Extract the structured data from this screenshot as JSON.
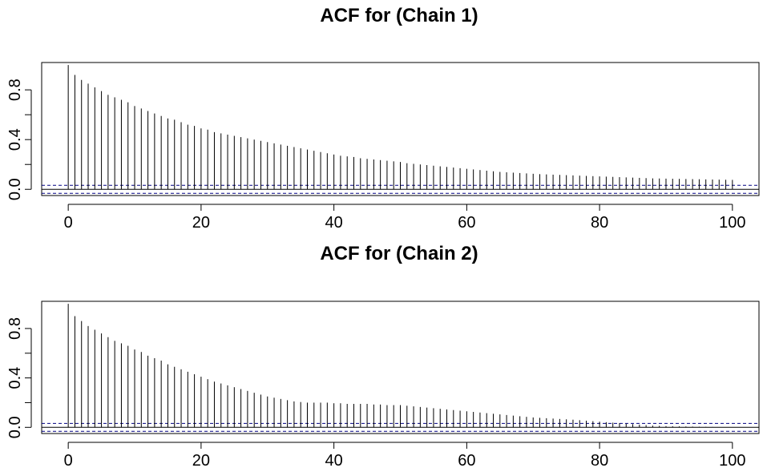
{
  "chart_data": [
    {
      "type": "bar",
      "title": "ACF for (Chain 1)",
      "xlabel": "",
      "ylabel": "",
      "xlim": [
        -4,
        104
      ],
      "ylim": [
        -0.05,
        1.02
      ],
      "x_ticks": [
        0,
        20,
        40,
        60,
        80,
        100
      ],
      "y_ticks": [
        0.0,
        0.2,
        0.4,
        0.6,
        0.8
      ],
      "y_tick_labels": [
        "0.0",
        "",
        "0.4",
        "",
        "0.8"
      ],
      "confidence_band": [
        -0.032,
        0.032
      ],
      "lags": [
        0,
        1,
        2,
        3,
        4,
        5,
        6,
        7,
        8,
        9,
        10,
        11,
        12,
        13,
        14,
        15,
        16,
        17,
        18,
        19,
        20,
        21,
        22,
        23,
        24,
        25,
        26,
        27,
        28,
        29,
        30,
        31,
        32,
        33,
        34,
        35,
        36,
        37,
        38,
        39,
        40,
        41,
        42,
        43,
        44,
        45,
        46,
        47,
        48,
        49,
        50,
        51,
        52,
        53,
        54,
        55,
        56,
        57,
        58,
        59,
        60,
        61,
        62,
        63,
        64,
        65,
        66,
        67,
        68,
        69,
        70,
        71,
        72,
        73,
        74,
        75,
        76,
        77,
        78,
        79,
        80,
        81,
        82,
        83,
        84,
        85,
        86,
        87,
        88,
        89,
        90,
        91,
        92,
        93,
        94,
        95,
        96,
        97,
        98,
        99,
        100
      ],
      "values": [
        1.0,
        0.92,
        0.88,
        0.85,
        0.82,
        0.79,
        0.76,
        0.74,
        0.72,
        0.7,
        0.67,
        0.65,
        0.63,
        0.61,
        0.59,
        0.57,
        0.56,
        0.54,
        0.52,
        0.51,
        0.49,
        0.48,
        0.46,
        0.45,
        0.44,
        0.43,
        0.42,
        0.41,
        0.4,
        0.39,
        0.38,
        0.37,
        0.36,
        0.35,
        0.34,
        0.33,
        0.32,
        0.31,
        0.3,
        0.29,
        0.28,
        0.27,
        0.265,
        0.26,
        0.25,
        0.245,
        0.24,
        0.235,
        0.23,
        0.225,
        0.22,
        0.21,
        0.205,
        0.2,
        0.195,
        0.19,
        0.185,
        0.18,
        0.175,
        0.17,
        0.165,
        0.16,
        0.155,
        0.15,
        0.145,
        0.14,
        0.137,
        0.134,
        0.131,
        0.128,
        0.125,
        0.122,
        0.12,
        0.118,
        0.116,
        0.114,
        0.112,
        0.11,
        0.108,
        0.106,
        0.104,
        0.102,
        0.1,
        0.098,
        0.096,
        0.094,
        0.092,
        0.09,
        0.088,
        0.087,
        0.086,
        0.085,
        0.084,
        0.083,
        0.082,
        0.081,
        0.08,
        0.079,
        0.078,
        0.077,
        0.076
      ],
      "colors": {
        "bars": "#000000",
        "confidence_band": "#000080",
        "frame": "#000000"
      }
    },
    {
      "type": "bar",
      "title": "ACF for (Chain 2)",
      "xlabel": "",
      "ylabel": "",
      "xlim": [
        -4,
        104
      ],
      "ylim": [
        -0.05,
        1.02
      ],
      "x_ticks": [
        0,
        20,
        40,
        60,
        80,
        100
      ],
      "y_ticks": [
        0.0,
        0.2,
        0.4,
        0.6,
        0.8
      ],
      "y_tick_labels": [
        "0.0",
        "",
        "0.4",
        "",
        "0.8"
      ],
      "confidence_band": [
        -0.032,
        0.032
      ],
      "lags": [
        0,
        1,
        2,
        3,
        4,
        5,
        6,
        7,
        8,
        9,
        10,
        11,
        12,
        13,
        14,
        15,
        16,
        17,
        18,
        19,
        20,
        21,
        22,
        23,
        24,
        25,
        26,
        27,
        28,
        29,
        30,
        31,
        32,
        33,
        34,
        35,
        36,
        37,
        38,
        39,
        40,
        41,
        42,
        43,
        44,
        45,
        46,
        47,
        48,
        49,
        50,
        51,
        52,
        53,
        54,
        55,
        56,
        57,
        58,
        59,
        60,
        61,
        62,
        63,
        64,
        65,
        66,
        67,
        68,
        69,
        70,
        71,
        72,
        73,
        74,
        75,
        76,
        77,
        78,
        79,
        80,
        81,
        82,
        83,
        84,
        85,
        86,
        87,
        88,
        89,
        90,
        91,
        92,
        93,
        94,
        95,
        96,
        97,
        98,
        99,
        100
      ],
      "values": [
        1.0,
        0.9,
        0.86,
        0.82,
        0.79,
        0.76,
        0.73,
        0.7,
        0.68,
        0.66,
        0.63,
        0.61,
        0.58,
        0.56,
        0.54,
        0.51,
        0.49,
        0.47,
        0.45,
        0.43,
        0.41,
        0.39,
        0.37,
        0.355,
        0.34,
        0.325,
        0.31,
        0.295,
        0.28,
        0.265,
        0.25,
        0.24,
        0.23,
        0.22,
        0.21,
        0.205,
        0.2,
        0.2,
        0.2,
        0.2,
        0.195,
        0.195,
        0.19,
        0.19,
        0.19,
        0.19,
        0.185,
        0.185,
        0.18,
        0.18,
        0.18,
        0.175,
        0.17,
        0.165,
        0.16,
        0.155,
        0.15,
        0.145,
        0.14,
        0.135,
        0.13,
        0.125,
        0.12,
        0.115,
        0.11,
        0.105,
        0.1,
        0.095,
        0.09,
        0.085,
        0.08,
        0.077,
        0.074,
        0.071,
        0.068,
        0.065,
        0.062,
        0.058,
        0.054,
        0.05,
        0.046,
        0.042,
        0.038,
        0.034,
        0.03,
        0.026,
        0.022,
        0.018,
        0.014,
        0.012,
        0.01,
        0.009,
        0.008,
        0.007,
        0.006,
        0.005,
        0.004,
        0.003,
        0.002,
        0.002,
        0.001
      ],
      "colors": {
        "bars": "#000000",
        "confidence_band": "#000080",
        "frame": "#000000"
      }
    }
  ]
}
